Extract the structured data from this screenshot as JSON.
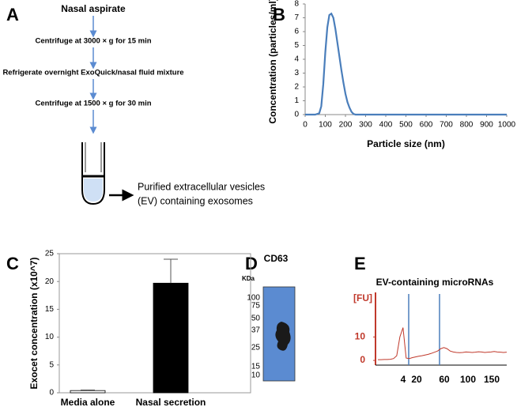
{
  "panel_labels": [
    "A",
    "B",
    "C",
    "D",
    "E"
  ],
  "workflow": {
    "steps": [
      "Nasal aspirate",
      "Centrifuge at 3000 × g for 15 min",
      "Refrigerate overnight ExoQuick/nasal fluid mixture",
      "Centrifuge at 1500 × g for 30 min"
    ],
    "result": [
      "Purified extracellular vesicles",
      "(EV) containing exosomes"
    ]
  },
  "blot": {
    "title": "CD63",
    "unit_label": "KDa",
    "markers": [
      100,
      75,
      50,
      37,
      25,
      15,
      10
    ]
  },
  "chart_data": [
    {
      "type": "line",
      "x_label": "Particle size (nm)",
      "y_label": "Concentration (particles/ml)",
      "x": [
        0,
        50,
        70,
        80,
        90,
        100,
        110,
        120,
        130,
        140,
        150,
        160,
        170,
        180,
        190,
        200,
        210,
        220,
        230,
        240,
        250,
        260,
        1000
      ],
      "series": [
        {
          "color": "#4a7ebb",
          "values": [
            0,
            0,
            0.1,
            0.6,
            2.2,
            4.5,
            6.3,
            7.2,
            7.3,
            7.0,
            6.2,
            5.2,
            4.2,
            3.2,
            2.3,
            1.5,
            0.9,
            0.5,
            0.2,
            0.05,
            0,
            0,
            0
          ]
        }
      ],
      "xlim": [
        0,
        1000
      ],
      "ylim": [
        0,
        8
      ],
      "xticks": [
        0,
        100,
        200,
        300,
        400,
        500,
        600,
        700,
        800,
        900,
        1000
      ],
      "yticks": [
        0,
        1,
        2,
        3,
        4,
        5,
        6,
        7,
        8
      ]
    },
    {
      "type": "bar",
      "y_label": "Exocet concentration (x10^7)",
      "categories": [
        "Media alone",
        "Nasal secretion"
      ],
      "values": [
        0.4,
        19.7
      ],
      "errors": [
        0.1,
        4.3
      ],
      "colors": [
        "#ffffff",
        "#000000"
      ],
      "ylim": [
        0,
        25
      ],
      "yticks": [
        0,
        5,
        10,
        15,
        20,
        25
      ]
    },
    {
      "type": "electropherogram",
      "title": "EV-containing microRNAs",
      "y_label": "[FU]",
      "x_labels": [
        4,
        20,
        60,
        100,
        150
      ],
      "color": "#c0392b",
      "values": [
        0.3,
        0.3,
        0.4,
        0.4,
        0.5,
        0.8,
        2,
        10,
        14,
        1,
        0.8,
        1.2,
        1.5,
        1.8,
        2,
        2.3,
        2.6,
        3,
        3.5,
        4,
        5,
        5.5,
        5,
        4,
        3.6,
        3.4,
        3.3,
        3.4,
        3.6,
        3.5,
        3.4,
        3.5,
        3.7,
        3.6,
        3.4,
        3.5,
        3.6,
        3.8,
        3.6,
        3.5,
        3.4,
        3.5
      ],
      "ylim": [
        -2,
        29
      ],
      "yticks": [
        0,
        10
      ]
    }
  ]
}
